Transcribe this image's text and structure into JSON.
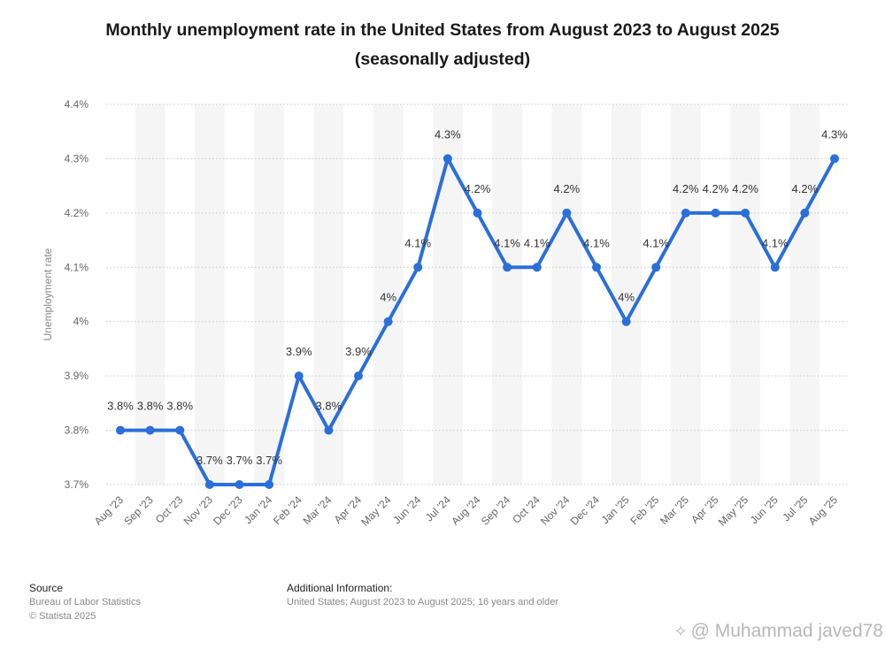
{
  "chart_data": {
    "type": "line",
    "title_line1": "Monthly unemployment rate in the United States from August 2023 to August 2025",
    "title_line2": "(seasonally adjusted)",
    "ylabel": "Unemployment rate",
    "xlabel": "",
    "categories": [
      "Aug '23",
      "Sep '23",
      "Oct '23",
      "Nov '23",
      "Dec '23",
      "Jan '24",
      "Feb '24",
      "Mar '24",
      "Apr '24",
      "May '24",
      "Jun '24",
      "Jul '24",
      "Aug '24",
      "Sep '24",
      "Oct '24",
      "Nov '24",
      "Dec '24",
      "Jan '25",
      "Feb '25",
      "Mar '25",
      "Apr '25",
      "May '25",
      "Jun '25",
      "Jul '25",
      "Aug '25"
    ],
    "values": [
      3.8,
      3.8,
      3.8,
      3.7,
      3.7,
      3.7,
      3.9,
      3.8,
      3.9,
      4.0,
      4.1,
      4.3,
      4.2,
      4.1,
      4.1,
      4.2,
      4.1,
      4.0,
      4.1,
      4.2,
      4.2,
      4.2,
      4.1,
      4.2,
      4.3
    ],
    "data_labels": [
      "3.8%",
      "3.8%",
      "3.8%",
      "3.7%",
      "3.7%",
      "3.7%",
      "3.9%",
      "3.8%",
      "3.9%",
      "4%",
      "4.1%",
      "4.3%",
      "4.2%",
      "4.1%",
      "4.1%",
      "4.2%",
      "4.1%",
      "4%",
      "4.1%",
      "4.2%",
      "4.2%",
      "4.2%",
      "4.1%",
      "4.2%",
      "4.3%"
    ],
    "y_ticks": [
      4.4,
      4.3,
      4.2,
      4.1,
      4.0,
      3.9,
      3.8,
      3.7
    ],
    "y_tick_labels": [
      "4.4%",
      "4.3%",
      "4.2%",
      "4.1%",
      "4%",
      "3.9%",
      "3.8%",
      "3.7%"
    ],
    "ylim": [
      3.7,
      4.4
    ],
    "grid": true,
    "legend": "none",
    "line_color": "#2a6fdb",
    "band_color": "#f5f5f5",
    "grid_color": "#c8c8c8"
  },
  "footer": {
    "source_heading": "Source",
    "source_line1": "Bureau of Labor Statistics",
    "source_line2": "© Statista 2025",
    "info_heading": "Additional Information:",
    "info_text": "United States; August 2023 to August 2025; 16 years and older"
  },
  "watermark": {
    "icon": "✧",
    "text": "@ Muhammad javed78"
  }
}
